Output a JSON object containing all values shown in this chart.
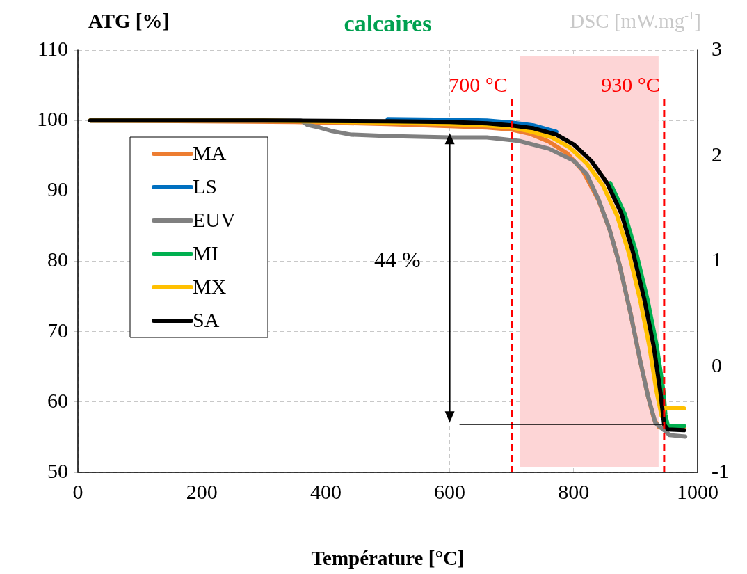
{
  "chart_data": {
    "type": "line",
    "title": "calcaires",
    "xlabel": "Température [°C]",
    "ylabel": "ATG [%]",
    "y2label": "DSC [mW.mg$^{-1}$]",
    "xlim": [
      0,
      1000
    ],
    "xticks": [
      0,
      200,
      400,
      600,
      800,
      1000
    ],
    "ylim": [
      50,
      110
    ],
    "yticks": [
      50,
      60,
      70,
      80,
      90,
      100,
      110
    ],
    "y2lim": [
      -1,
      3
    ],
    "y2ticks": [
      -1,
      0,
      1,
      2,
      3
    ],
    "grid": true,
    "legend": "top left",
    "marker": "none",
    "line_style": "solid",
    "series": [
      {
        "name": "MA",
        "color": "#ed7d31",
        "x": [
          20,
          350,
          500,
          600,
          660,
          700,
          730,
          760,
          790,
          815,
          840,
          858,
          874,
          892,
          907,
          920,
          930,
          938,
          978
        ],
        "values": [
          100,
          99.8,
          99.5,
          99.2,
          99,
          98.7,
          98.1,
          97,
          95.3,
          92.8,
          88.7,
          84.5,
          79.5,
          72.5,
          66,
          60.8,
          57.5,
          56.4,
          56.3
        ]
      },
      {
        "name": "LS",
        "color": "#0070c0",
        "x": [
          500,
          600,
          660,
          700,
          735,
          772
        ],
        "values": [
          100.2,
          100.1,
          100,
          99.7,
          99.3,
          98.4
        ]
      },
      {
        "name": "EUV",
        "color": "#808080",
        "x": [
          20,
          360,
          370,
          390,
          410,
          440,
          500,
          600,
          660,
          712,
          760,
          800,
          821,
          840,
          858,
          874,
          892,
          907,
          920,
          932,
          946,
          955,
          980
        ],
        "values": [
          100,
          100,
          99.4,
          99,
          98.5,
          98,
          97.8,
          97.6,
          97.6,
          97.1,
          96,
          94.3,
          92.4,
          88.8,
          84.5,
          79.5,
          72.5,
          66,
          60.8,
          57,
          56,
          55.3,
          55.1
        ]
      },
      {
        "name": "MI",
        "color": "#00b050",
        "x": [
          859,
          882,
          901,
          919,
          934,
          945,
          948,
          952,
          978
        ],
        "values": [
          91.1,
          86.8,
          81.2,
          74.6,
          68,
          61.4,
          58.2,
          56.6,
          56.6
        ]
      },
      {
        "name": "MX",
        "color": "#ffc000",
        "x": [
          20,
          300,
          500,
          600,
          660,
          700,
          728,
          765,
          793,
          821,
          847,
          870,
          889,
          907,
          922,
          934,
          942,
          946,
          978
        ],
        "values": [
          100,
          100,
          99.7,
          99.5,
          99.3,
          99,
          98.5,
          97.6,
          96.2,
          93.9,
          90.8,
          86.5,
          81.2,
          74.6,
          68,
          61.4,
          58,
          59.1,
          59.1
        ]
      },
      {
        "name": "SA",
        "color": "#000000",
        "x": [
          20,
          300,
          500,
          600,
          660,
          700,
          735,
          772,
          800,
          828,
          854,
          877,
          896,
          914,
          929,
          940,
          946,
          952,
          978
        ],
        "values": [
          100,
          100,
          99.9,
          99.8,
          99.6,
          99.3,
          98.9,
          98,
          96.6,
          94.3,
          91.1,
          86.8,
          81.2,
          74.6,
          68,
          61.4,
          56.8,
          56.1,
          56
        ]
      }
    ],
    "bands": [
      {
        "axis": "x",
        "from": 713,
        "to": 937,
        "color": "#fdd5d6"
      }
    ],
    "ref_lines": [
      {
        "axis": "x",
        "value": 700,
        "label": "700 °C",
        "color": "#ff0000",
        "line_style": "dashed"
      },
      {
        "axis": "x",
        "value": 946,
        "label": "930 °C",
        "color": "#ff0000",
        "line_style": "dashed"
      },
      {
        "axis": "y",
        "value": 56.8,
        "color": "#000000",
        "line_style": "solid"
      }
    ],
    "annotations": [
      "44 %"
    ]
  }
}
